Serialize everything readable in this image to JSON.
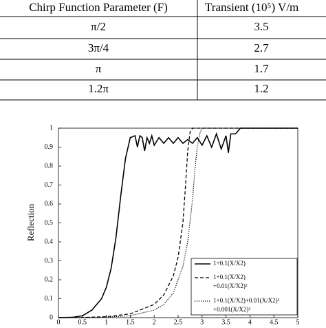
{
  "table": {
    "header": [
      "Chirp Function Parameter (F)",
      "Transient (10⁵) V/m"
    ],
    "rows": [
      [
        "π/2",
        3.5
      ],
      [
        "3π/4",
        2.7
      ],
      [
        "π",
        1.7
      ],
      [
        "1.2π",
        1.2
      ]
    ]
  },
  "chart_data": {
    "type": "line",
    "ylabel": "Reflection",
    "xlim": [
      0,
      5
    ],
    "ylim": [
      0,
      1
    ],
    "xticks": [
      0,
      0.5,
      1,
      1.5,
      2,
      2.5,
      3,
      3.5,
      4,
      4.5,
      5
    ],
    "yticks": [
      0,
      0.1,
      0.2,
      0.3,
      0.4,
      0.5,
      0.6,
      0.7,
      0.8,
      0.9,
      1
    ],
    "legend": "lower right",
    "series": [
      {
        "name": "1+0.1(X/X2)",
        "color": "#000000",
        "dash": "solid",
        "x": [
          0,
          0.3,
          0.5,
          0.7,
          0.9,
          1.0,
          1.1,
          1.2,
          1.3,
          1.4,
          1.5,
          1.55,
          1.6,
          1.65,
          1.7,
          1.75,
          1.8,
          1.85,
          1.9,
          1.95,
          2.0,
          2.1,
          2.2,
          2.3,
          2.4,
          2.5,
          2.6,
          2.7,
          2.8,
          2.9,
          3.0,
          3.1,
          3.2,
          3.3,
          3.4,
          3.5,
          3.55,
          3.6,
          3.7,
          3.8,
          5
        ],
        "values": [
          0,
          0.002,
          0.01,
          0.04,
          0.1,
          0.16,
          0.26,
          0.42,
          0.64,
          0.84,
          0.95,
          0.955,
          0.96,
          0.9,
          0.96,
          0.95,
          0.88,
          0.95,
          0.92,
          0.96,
          0.91,
          0.95,
          0.92,
          0.95,
          0.92,
          0.95,
          0.92,
          0.94,
          0.92,
          0.95,
          0.91,
          0.96,
          0.9,
          0.97,
          0.89,
          0.96,
          0.87,
          0.97,
          0.97,
          1,
          1
        ]
      },
      {
        "name": "1+0.1(X/X2)\n+0.01(X/X2)²",
        "color": "#000000",
        "dash": "dashed",
        "x": [
          0,
          0.5,
          1,
          1.5,
          2,
          2.2,
          2.4,
          2.5,
          2.6,
          2.65,
          2.7,
          2.75,
          2.8,
          5
        ],
        "values": [
          0,
          0.001,
          0.005,
          0.02,
          0.07,
          0.12,
          0.22,
          0.32,
          0.5,
          0.68,
          0.88,
          0.98,
          1,
          1
        ]
      },
      {
        "name": "1+0.1(X/X2)+0.01(X/X2)²\n+0.001(X/X2)²",
        "color": "#000000",
        "dash": "dotted",
        "x": [
          0,
          0.5,
          1,
          1.5,
          2,
          2.2,
          2.4,
          2.6,
          2.7,
          2.8,
          2.85,
          2.9,
          2.95,
          3.0,
          5
        ],
        "values": [
          0,
          0.001,
          0.003,
          0.01,
          0.04,
          0.07,
          0.13,
          0.27,
          0.4,
          0.62,
          0.78,
          0.9,
          0.97,
          1,
          1
        ]
      }
    ]
  }
}
